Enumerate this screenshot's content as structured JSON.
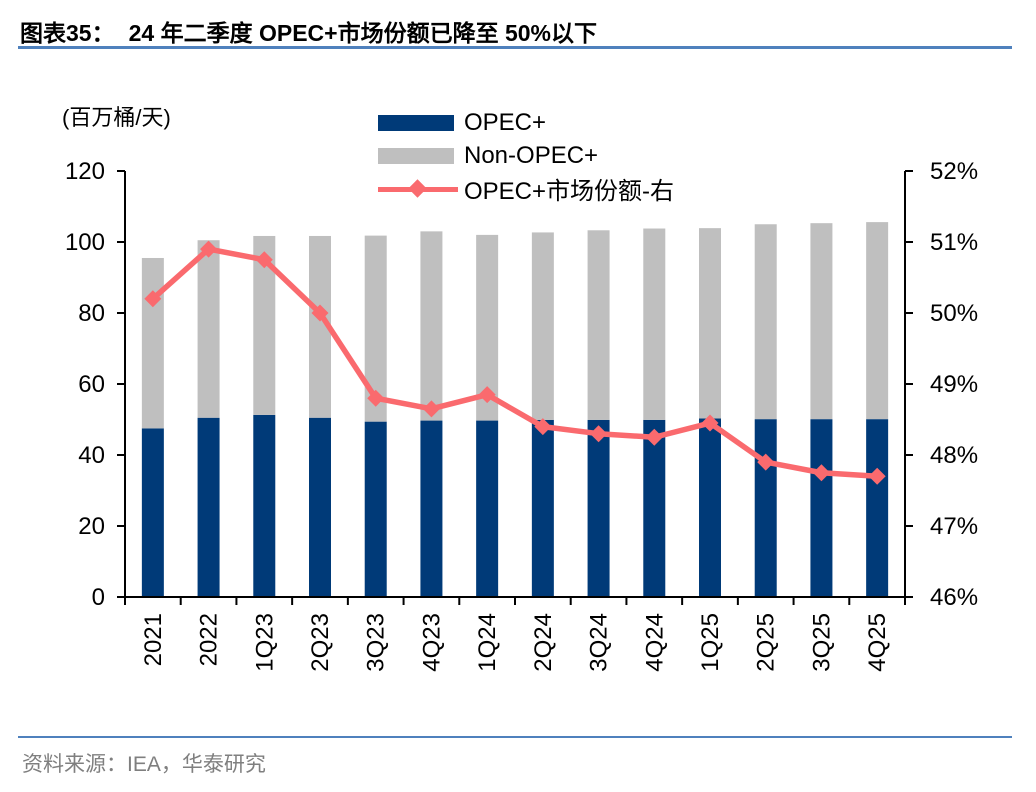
{
  "header": {
    "label": "图表35：",
    "title": "24 年二季度 OPEC+市场份额已降至 50%以下"
  },
  "footer": {
    "source": "资料来源：IEA，华泰研究"
  },
  "colors": {
    "bar_opec": "#003a78",
    "bar_non_opec": "#bfbfbf",
    "line_share": "#fa6a6e",
    "rule_blue": "#4f81bd",
    "axis": "#000000",
    "source_text": "#7f7f7f"
  },
  "chart_data": {
    "type": "bar",
    "subtype": "stacked-bars-with-secondary-axis-line",
    "title": "24 年二季度 OPEC+市场份额已降至 50%以下",
    "unit_label": "(百万桶/天)",
    "grid": false,
    "legend_position": "top-center",
    "categories": [
      "2021",
      "2022",
      "1Q23",
      "2Q23",
      "3Q23",
      "4Q23",
      "1Q24",
      "2Q24",
      "3Q24",
      "4Q24",
      "1Q25",
      "2Q25",
      "3Q25",
      "4Q25"
    ],
    "series": [
      {
        "name": "OPEC+",
        "type": "bar",
        "stack": true,
        "axis": "left",
        "color": "#003a78",
        "values": [
          47.5,
          50.5,
          51.3,
          50.5,
          49.4,
          49.7,
          49.7,
          49.9,
          49.9,
          49.9,
          50.3,
          50.1,
          50.1,
          50.1
        ]
      },
      {
        "name": "Non-OPEC+",
        "type": "bar",
        "stack": true,
        "axis": "left",
        "color": "#bfbfbf",
        "values": [
          48.0,
          50.0,
          50.4,
          51.2,
          52.4,
          53.3,
          52.3,
          52.8,
          53.4,
          53.9,
          53.6,
          54.9,
          55.2,
          55.5
        ]
      },
      {
        "name": "OPEC+市场份额-右",
        "type": "line",
        "axis": "right",
        "color": "#fa6a6e",
        "values": [
          50.2,
          50.9,
          50.75,
          50.0,
          48.8,
          48.65,
          48.85,
          48.4,
          48.3,
          48.25,
          48.45,
          47.9,
          47.75,
          47.7
        ]
      }
    ],
    "left_axis": {
      "min": 0,
      "max": 120,
      "ticks": [
        0,
        20,
        40,
        60,
        80,
        100,
        120
      ]
    },
    "right_axis": {
      "min": 46,
      "max": 52,
      "tick_labels": [
        "46%",
        "47%",
        "48%",
        "49%",
        "50%",
        "51%",
        "52%"
      ]
    }
  }
}
